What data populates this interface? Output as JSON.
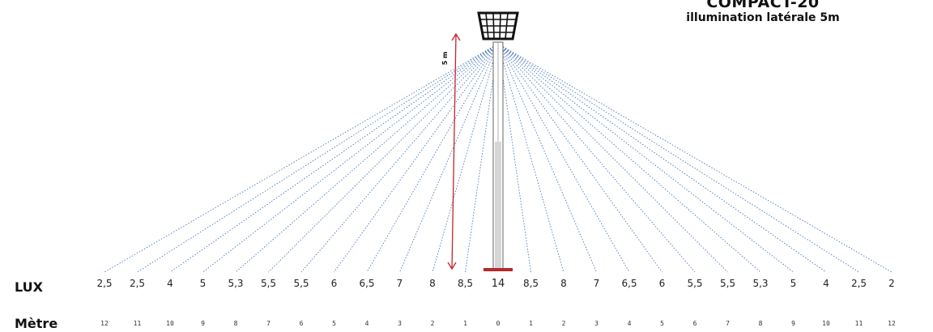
{
  "title": {
    "model": "COMPACT-20",
    "subtitle": "illumination latérale 5m"
  },
  "height_marker": {
    "label": "5 m"
  },
  "rows": {
    "lux_label": "LUX",
    "metre_label": "Mètre"
  },
  "lux_values": [
    "2,5",
    "2,5",
    "4",
    "5",
    "5,3",
    "5,5",
    "5,5",
    "6",
    "6,5",
    "7",
    "8",
    "8,5",
    "14",
    "8,5",
    "8",
    "7",
    "6,5",
    "6",
    "5,5",
    "5,5",
    "5,3",
    "5",
    "4",
    "2,5",
    "2"
  ],
  "metre_values": [
    "12",
    "11",
    "10",
    "9",
    "8",
    "7",
    "6",
    "5",
    "4",
    "3",
    "2",
    "1",
    "0",
    "1",
    "2",
    "3",
    "4",
    "5",
    "6",
    "7",
    "8",
    "9",
    "10",
    "11",
    "12"
  ],
  "colors": {
    "ray": "#4a78b8",
    "height_arrow": "#c0262d",
    "pole": "#666666",
    "base": "#b52a2a"
  }
}
